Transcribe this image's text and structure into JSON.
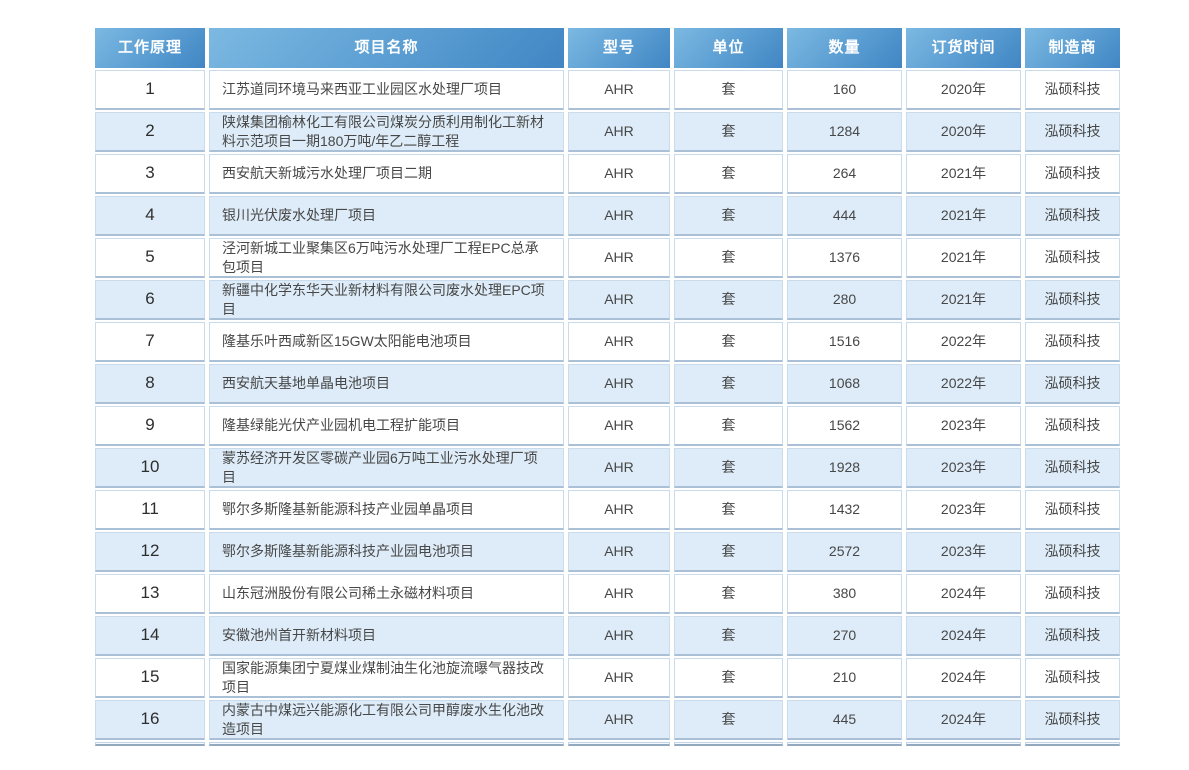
{
  "table": {
    "columns": [
      {
        "key": "principle",
        "label": "工作原理"
      },
      {
        "key": "name",
        "label": "项目名称"
      },
      {
        "key": "model",
        "label": "型号"
      },
      {
        "key": "unit",
        "label": "单位"
      },
      {
        "key": "qty",
        "label": "数量"
      },
      {
        "key": "time",
        "label": "订货时间"
      },
      {
        "key": "maker",
        "label": "制造商"
      }
    ],
    "rows": [
      {
        "principle": "1",
        "name": "江苏道同环境马来西亚工业园区水处理厂项目",
        "model": "AHR",
        "unit": "套",
        "qty": "160",
        "time": "2020年",
        "maker": "泓硕科技"
      },
      {
        "principle": "2",
        "name": "陕煤集团榆林化工有限公司煤炭分质利用制化工新材料示范项目一期180万吨/年乙二醇工程",
        "model": "AHR",
        "unit": "套",
        "qty": "1284",
        "time": "2020年",
        "maker": "泓硕科技"
      },
      {
        "principle": "3",
        "name": "西安航天新城污水处理厂项目二期",
        "model": "AHR",
        "unit": "套",
        "qty": "264",
        "time": "2021年",
        "maker": "泓硕科技"
      },
      {
        "principle": "4",
        "name": "银川光伏废水处理厂项目",
        "model": "AHR",
        "unit": "套",
        "qty": "444",
        "time": "2021年",
        "maker": "泓硕科技"
      },
      {
        "principle": "5",
        "name": "泾河新城工业聚集区6万吨污水处理厂工程EPC总承包项目",
        "model": "AHR",
        "unit": "套",
        "qty": "1376",
        "time": "2021年",
        "maker": "泓硕科技"
      },
      {
        "principle": "6",
        "name": "新疆中化学东华天业新材料有限公司废水处理EPC项目",
        "model": "AHR",
        "unit": "套",
        "qty": "280",
        "time": "2021年",
        "maker": "泓硕科技"
      },
      {
        "principle": "7",
        "name": "隆基乐叶西咸新区15GW太阳能电池项目",
        "model": "AHR",
        "unit": "套",
        "qty": "1516",
        "time": "2022年",
        "maker": "泓硕科技"
      },
      {
        "principle": "8",
        "name": "西安航天基地单晶电池项目",
        "model": "AHR",
        "unit": "套",
        "qty": "1068",
        "time": "2022年",
        "maker": "泓硕科技"
      },
      {
        "principle": "9",
        "name": "隆基绿能光伏产业园机电工程扩能项目",
        "model": "AHR",
        "unit": "套",
        "qty": "1562",
        "time": "2023年",
        "maker": "泓硕科技"
      },
      {
        "principle": "10",
        "name": "蒙苏经济开发区零碳产业园6万吨工业污水处理厂项目",
        "model": "AHR",
        "unit": "套",
        "qty": "1928",
        "time": "2023年",
        "maker": "泓硕科技"
      },
      {
        "principle": "11",
        "name": "鄂尔多斯隆基新能源科技产业园单晶项目",
        "model": "AHR",
        "unit": "套",
        "qty": "1432",
        "time": "2023年",
        "maker": "泓硕科技"
      },
      {
        "principle": "12",
        "name": "鄂尔多斯隆基新能源科技产业园电池项目",
        "model": "AHR",
        "unit": "套",
        "qty": "2572",
        "time": "2023年",
        "maker": "泓硕科技"
      },
      {
        "principle": "13",
        "name": "山东冠洲股份有限公司稀土永磁材料项目",
        "model": "AHR",
        "unit": "套",
        "qty": "380",
        "time": "2024年",
        "maker": "泓硕科技"
      },
      {
        "principle": "14",
        "name": "安徽池州首开新材料项目",
        "model": "AHR",
        "unit": "套",
        "qty": "270",
        "time": "2024年",
        "maker": "泓硕科技"
      },
      {
        "principle": "15",
        "name": "国家能源集团宁夏煤业煤制油生化池旋流曝气器技改项目",
        "model": "AHR",
        "unit": "套",
        "qty": "210",
        "time": "2024年",
        "maker": "泓硕科技"
      },
      {
        "principle": "16",
        "name": "内蒙古中煤远兴能源化工有限公司甲醇废水生化池改造项目",
        "model": "AHR",
        "unit": "套",
        "qty": "445",
        "time": "2024年",
        "maker": "泓硕科技"
      }
    ],
    "partial_row_visible": true
  },
  "colors": {
    "header_gradient_start": "#7cb9e2",
    "header_gradient_end": "#4186c4",
    "even_row_bg": "#ddecf8",
    "odd_row_bg": "#ffffff",
    "cell_border": "#cadcec",
    "cell_border_bottom": "#a9c0d6",
    "header_text": "#ffffff",
    "body_text": "#474747"
  }
}
